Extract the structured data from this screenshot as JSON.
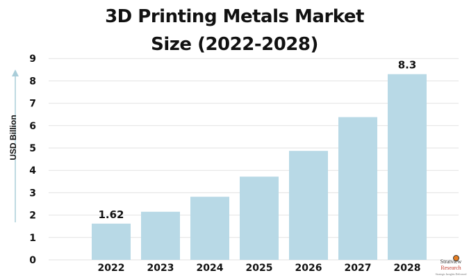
{
  "chart_data": {
    "type": "bar",
    "title_lines": [
      "3D Printing Metals Market",
      "Size (2022-2028)"
    ],
    "xlabel": "",
    "ylabel": "USD Billion",
    "categories": [
      "2022",
      "2023",
      "2024",
      "2025",
      "2026",
      "2027",
      "2028"
    ],
    "values": [
      1.62,
      2.15,
      2.82,
      3.72,
      4.87,
      6.38,
      8.3
    ],
    "data_labels": [
      "1.62",
      "",
      "",
      "",
      "",
      "",
      "8.3"
    ],
    "ylim": [
      0,
      9
    ],
    "yticks": [
      "0",
      "1",
      "2",
      "3",
      "4",
      "5",
      "6",
      "7",
      "8",
      "9"
    ],
    "grid": true,
    "legend": "none",
    "bar_color": "#b8d9e6",
    "grid_color": "#e2e2e2",
    "axis_arrow_color": "#a9cdd9"
  },
  "branding": {
    "line1": "Stratview",
    "line2": "Research",
    "line3": "Strategic Insights Delivered"
  }
}
